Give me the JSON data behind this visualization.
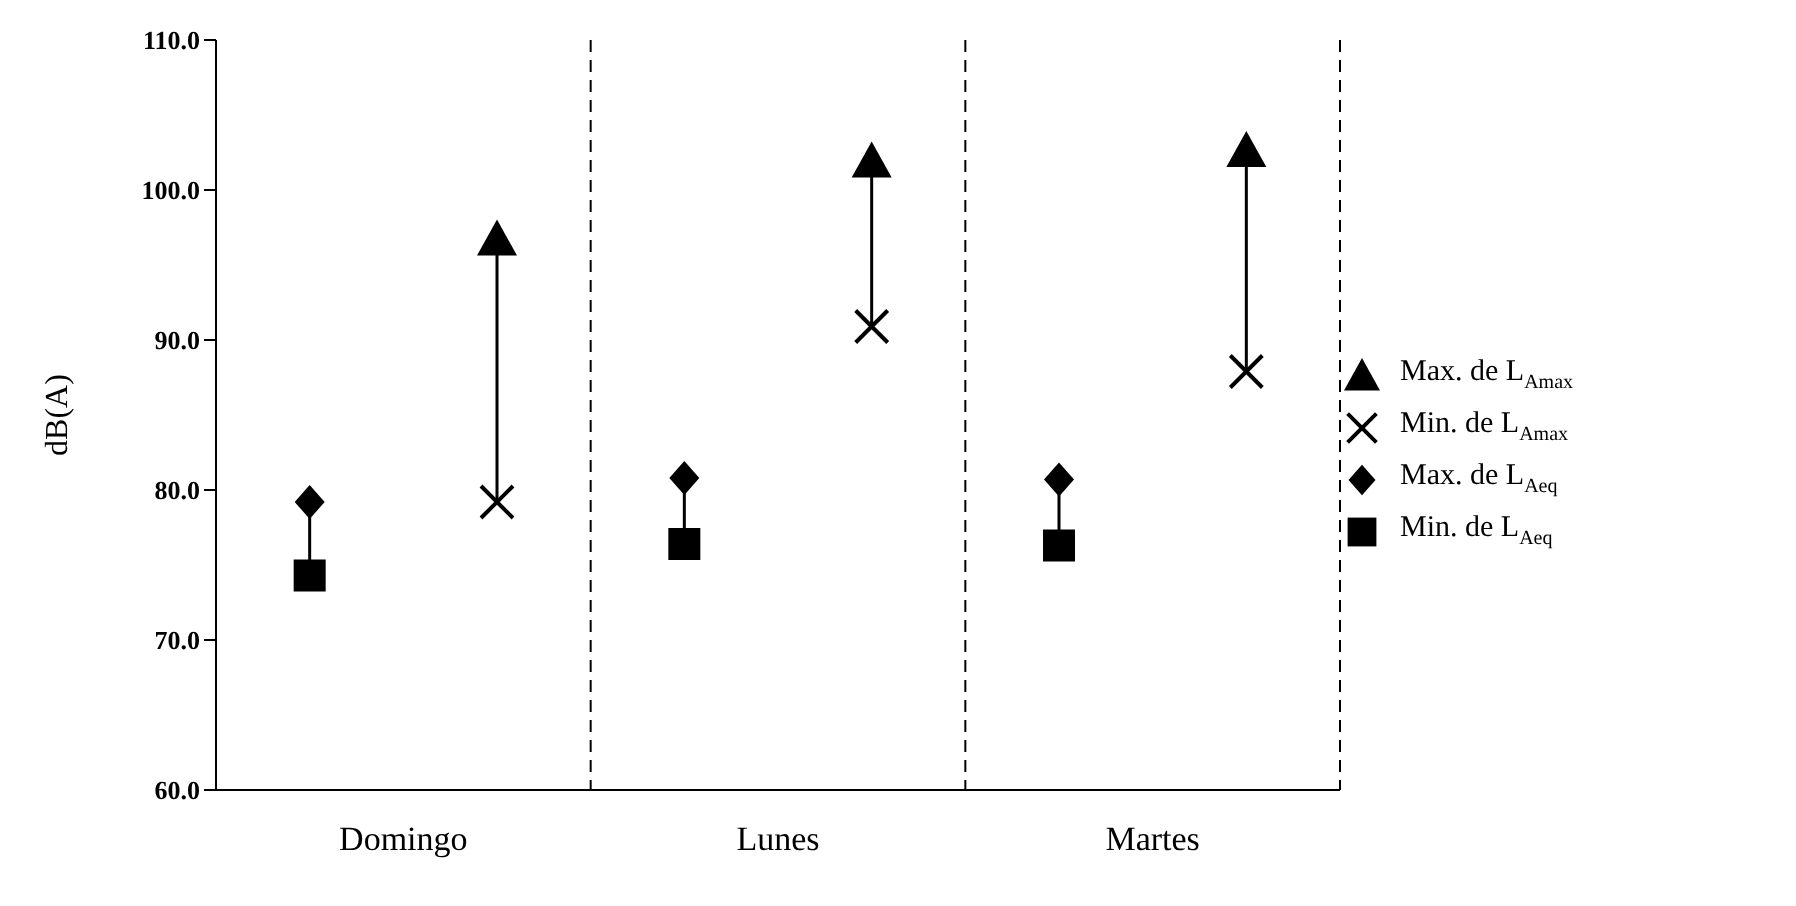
{
  "chart_data": {
    "type": "scatter",
    "ylabel": "dB(A)",
    "categories": [
      "Domingo",
      "Lunes",
      "Martes"
    ],
    "series": [
      {
        "name": "Max. de L$_{Aeq}$",
        "color": "#000000",
        "marker": "diamond",
        "values": [
          79.2,
          80.8,
          80.7
        ]
      },
      {
        "name": "Min. de L$_{Aeq}$",
        "color": "#000000",
        "marker": "square",
        "values": [
          74.3,
          76.4,
          76.3
        ]
      },
      {
        "name": "Max. de L$_{Amax}$",
        "color": "#000000",
        "marker": "triangle",
        "values": [
          96.7,
          101.9,
          102.6
        ]
      },
      {
        "name": "Min. de L$_{Amax}$",
        "color": "#000000",
        "marker": "cross",
        "values": [
          79.2,
          90.9,
          87.9
        ]
      }
    ],
    "ylim": [
      60,
      110
    ],
    "yticks": [
      {
        "value": 60,
        "label": "60.0"
      },
      {
        "value": 70,
        "label": "70.0"
      },
      {
        "value": 80,
        "label": "80.0"
      },
      {
        "value": 90,
        "label": "90.0"
      },
      {
        "value": 100,
        "label": "100.0"
      },
      {
        "value": 110,
        "label": "110.0"
      }
    ],
    "grid": "x",
    "legend": "right"
  }
}
